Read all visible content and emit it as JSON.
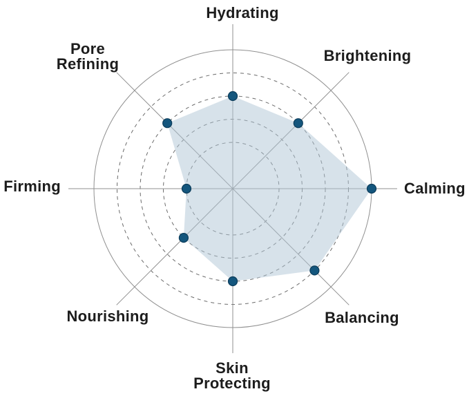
{
  "chart_data": {
    "type": "radar",
    "title": "",
    "categories": [
      "Hydrating",
      "Brightening",
      "Calming",
      "Balancing",
      "Skin Protecting",
      "Nourishing",
      "Firming",
      "Pore Refining"
    ],
    "label_lines": [
      [
        "Hydrating"
      ],
      [
        "Brightening"
      ],
      [
        "Calming"
      ],
      [
        "Balancing"
      ],
      [
        "Skin",
        "Protecting"
      ],
      [
        "Nourishing"
      ],
      [
        "Firming"
      ],
      [
        "Pore",
        "Refining"
      ]
    ],
    "values": [
      4,
      4,
      6,
      5,
      4,
      3,
      2,
      4
    ],
    "scale_max": 6,
    "grid_rings_dashed_levels": [
      2,
      3,
      4,
      5
    ],
    "grid_ring_solid_level": 6,
    "grid": "circular",
    "legend": "none",
    "colors": {
      "fill": "#afc6d6",
      "fill_opacity": 0.5,
      "point": "#14567d",
      "point_stroke": "#0c3c5a",
      "grid_solid": "#8f8f8f",
      "grid_dashed": "#6a6a6a",
      "axis": "#8f8f8f",
      "label": "#1c1c1c",
      "background": "#ffffff"
    }
  }
}
